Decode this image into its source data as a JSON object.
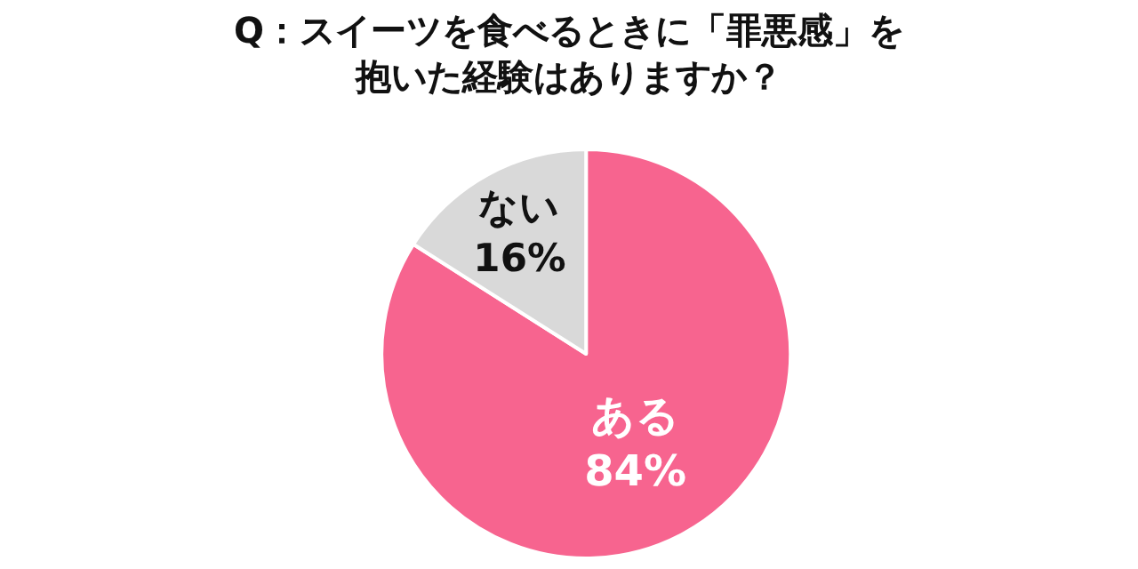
{
  "chart_data": {
    "type": "pie",
    "title": "Q：スイーツを食べるときに「罪悪感」を抱いた経験はありますか？",
    "categories": [
      "ある",
      "ない"
    ],
    "values": [
      84,
      16
    ],
    "value_labels": [
      "84%",
      "16%"
    ],
    "colors": [
      "#f7648f",
      "#d9d9d9"
    ]
  }
}
